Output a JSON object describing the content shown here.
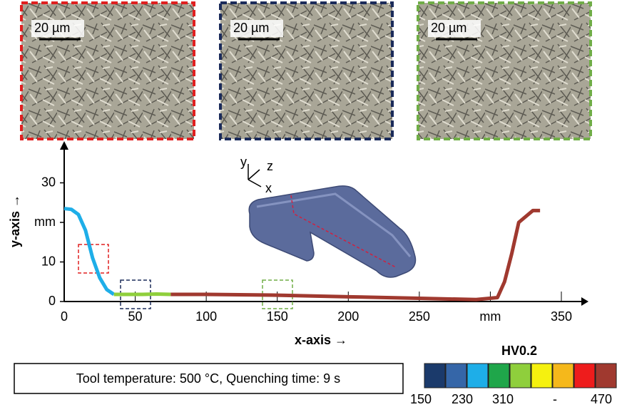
{
  "chart_data": {
    "type": "line",
    "x_label": "x-axis →",
    "y_label": "y-axis →",
    "xlim": [
      0,
      368
    ],
    "ylim": [
      0,
      40
    ],
    "xticks": [
      0,
      50,
      100,
      150,
      200,
      250,
      {
        "value": 300,
        "label": "mm"
      },
      350
    ],
    "yticks": [
      0,
      10,
      {
        "value": 20,
        "label": "mm"
      },
      30
    ],
    "series": [
      {
        "color": "#1eaee8",
        "x": [
          0,
          5,
          10,
          15,
          20,
          25,
          30,
          35
        ],
        "values": [
          23.5,
          23.3,
          22,
          18,
          11,
          6,
          3,
          1.8
        ]
      },
      {
        "color": "#8fcf3c",
        "x": [
          35,
          45,
          55,
          65,
          75
        ],
        "values": [
          1.8,
          1.8,
          1.8,
          1.9,
          1.8
        ]
      },
      {
        "color": "#a0392f",
        "x": [
          75,
          100,
          150,
          200,
          250,
          290,
          305,
          310,
          315,
          320,
          330,
          335
        ],
        "values": [
          1.8,
          1.8,
          1.6,
          1.2,
          0.8,
          0.5,
          1,
          5,
          12,
          20,
          23,
          23
        ]
      }
    ],
    "annotation": "Tool temperature: 500 °C, Quenching time: 9 s",
    "triad": {
      "y": "y",
      "z": "z",
      "x": "x"
    },
    "micrographs": [
      {
        "scale_bar": "20 µm"
      },
      {
        "scale_bar": "20 µm"
      },
      {
        "scale_bar": "20 µm"
      }
    ],
    "colorbar": {
      "title": "HV0.2",
      "colors": [
        "#1b3a6b",
        "#3566a8",
        "#1eaee8",
        "#1fa64a",
        "#8fcf3c",
        "#f5f10f",
        "#f5b81b",
        "#ee1c1c",
        "#a0392f"
      ],
      "labels": [
        "150",
        "230",
        "310",
        "-",
        "470"
      ]
    }
  }
}
